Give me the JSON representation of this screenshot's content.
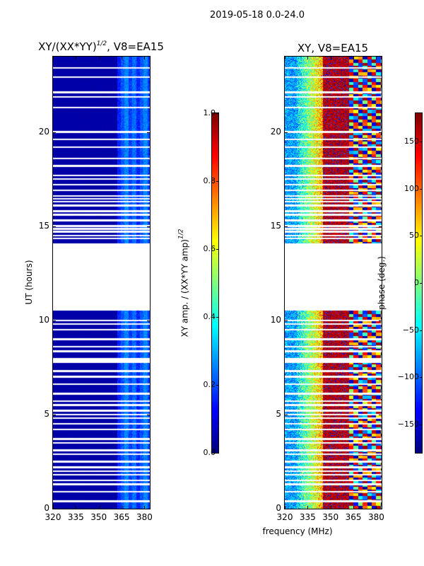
{
  "suptitle": "2019-05-18 0.0-24.0",
  "chart_data": [
    {
      "type": "heatmap",
      "title_main": "XY/(XX*YY)",
      "title_sup": "1/2",
      "title_rest": ", V8=EA15",
      "xlabel": "frequency (MHz)",
      "ylabel": "UT (hours)",
      "xlim": [
        320,
        383.5
      ],
      "ylim": [
        0,
        24
      ],
      "xticks": [
        320,
        335,
        350,
        365,
        380
      ],
      "yticks": [
        0,
        5,
        10,
        15,
        20
      ],
      "colormap": "jet",
      "colorbar": {
        "range": [
          0.0,
          1.0
        ],
        "ticks": [
          "0.0",
          "0.2",
          "0.4",
          "0.6",
          "0.8",
          "1.0"
        ],
        "tick_values": [
          0,
          0.2,
          0.4,
          0.6,
          0.8,
          1.0
        ],
        "label_main": "XY amp. / (XX*YY amp)",
        "label_sup": "1/2"
      },
      "typical_values": {
        "below_362MHz": 0.03,
        "above_362MHz": 0.2
      }
    },
    {
      "type": "heatmap",
      "title": "XY, V8=EA15",
      "xlim": [
        320,
        383.5
      ],
      "ylim": [
        0,
        24
      ],
      "xticks": [
        320,
        335,
        350,
        365,
        380
      ],
      "yticks": [
        0,
        5,
        10,
        15,
        20
      ],
      "colormap": "jet",
      "colorbar": {
        "range": [
          -180,
          180
        ],
        "ticks": [
          "−150",
          "−100",
          "−50",
          "0",
          "50",
          "100",
          "150"
        ],
        "tick_values": [
          -150,
          -100,
          -50,
          0,
          50,
          100,
          150
        ],
        "label": "phase (deg.)"
      },
      "typical_phase_deg": {
        "320-330MHz": -110,
        "330-345MHz": 0,
        "345-362MHz": 150,
        "362-383MHz": "mixed"
      }
    }
  ],
  "flagged_intervals_hours": [
    [
      10.5,
      14.1
    ],
    [
      7.75,
      8.0
    ]
  ],
  "flagged_lines_hours": [
    23.4,
    22.9,
    22.1,
    21.85,
    21.3,
    20.0,
    19.6,
    19.2,
    18.6,
    18.2,
    17.7,
    17.5,
    17.2,
    16.9,
    16.6,
    16.45,
    16.3,
    16.1,
    15.8,
    15.6,
    15.3,
    15.0,
    14.85,
    14.7,
    14.5,
    14.35,
    10.0,
    9.8,
    9.5,
    9.0,
    8.6,
    8.35,
    7.3,
    7.0,
    6.6,
    6.1,
    5.7,
    5.5,
    5.2,
    5.0,
    4.8,
    4.5,
    4.2,
    3.7,
    3.5,
    3.1,
    2.9,
    2.5,
    2.2,
    2.0,
    1.8,
    1.5,
    1.3,
    0.9,
    0.4
  ]
}
